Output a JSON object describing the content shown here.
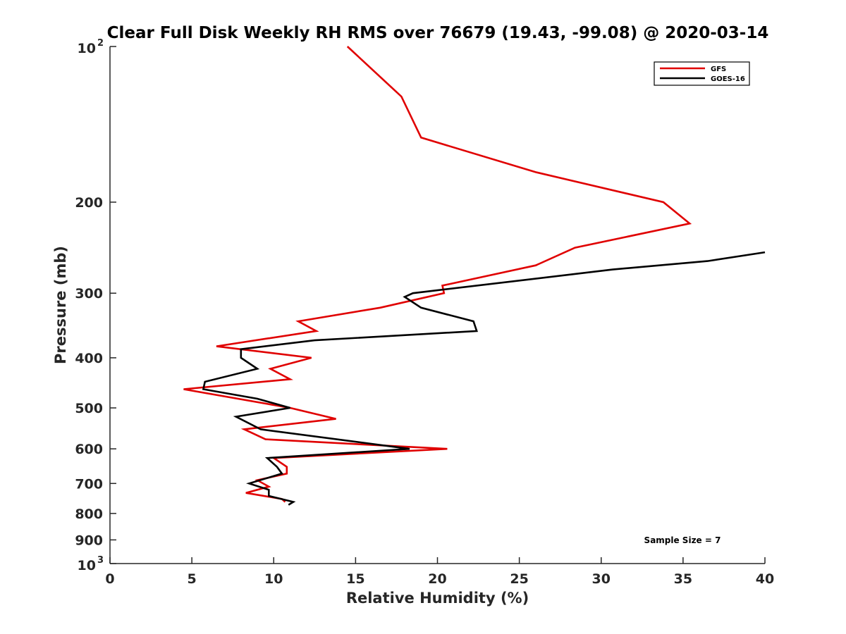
{
  "chart_data": {
    "type": "line",
    "title": "Clear Full Disk Weekly RH RMS over 76679 (19.43, -99.08) @ 2020-03-14",
    "xlabel": "Relative Humidity (%)",
    "ylabel": "Pressure (mb)",
    "xlim": [
      0,
      40
    ],
    "ylim": [
      100,
      1000
    ],
    "y_scale": "log",
    "y_reversed": true,
    "grid": false,
    "legend_position": "top-right",
    "x_ticks": [
      {
        "value": 0,
        "label": "0"
      },
      {
        "value": 5,
        "label": "5"
      },
      {
        "value": 10,
        "label": "10"
      },
      {
        "value": 15,
        "label": "15"
      },
      {
        "value": 20,
        "label": "20"
      },
      {
        "value": 25,
        "label": "25"
      },
      {
        "value": 30,
        "label": "30"
      },
      {
        "value": 35,
        "label": "35"
      },
      {
        "value": 40,
        "label": "40"
      }
    ],
    "y_ticks": [
      {
        "value": 100,
        "base": "10",
        "exp": "2"
      },
      {
        "value": 200,
        "label": "200"
      },
      {
        "value": 300,
        "label": "300"
      },
      {
        "value": 400,
        "label": "400"
      },
      {
        "value": 500,
        "label": "500"
      },
      {
        "value": 600,
        "label": "600"
      },
      {
        "value": 700,
        "label": "700"
      },
      {
        "value": 800,
        "label": "800"
      },
      {
        "value": 900,
        "label": "900"
      },
      {
        "value": 1000,
        "base": "10",
        "exp": "3"
      }
    ],
    "series": [
      {
        "name": "GFS",
        "color": "#e00000",
        "points": [
          [
            14.5,
            100
          ],
          [
            17.8,
            125
          ],
          [
            19.0,
            150
          ],
          [
            26.0,
            175
          ],
          [
            33.8,
            200
          ],
          [
            35.4,
            220
          ],
          [
            28.4,
            245
          ],
          [
            26.0,
            265
          ],
          [
            20.3,
            290
          ],
          [
            20.4,
            300
          ],
          [
            16.5,
            320
          ],
          [
            11.5,
            340
          ],
          [
            12.6,
            355
          ],
          [
            6.5,
            380
          ],
          [
            12.3,
            400
          ],
          [
            9.8,
            420
          ],
          [
            11.0,
            440
          ],
          [
            4.5,
            460
          ],
          [
            11.0,
            500
          ],
          [
            13.8,
            525
          ],
          [
            8.2,
            550
          ],
          [
            9.5,
            575
          ],
          [
            20.6,
            600
          ],
          [
            10.0,
            625
          ],
          [
            10.8,
            650
          ],
          [
            10.8,
            670
          ],
          [
            9.0,
            690
          ],
          [
            9.7,
            710
          ],
          [
            8.3,
            730
          ],
          [
            10.5,
            750
          ],
          [
            10.7,
            760
          ]
        ]
      },
      {
        "name": "GOES-16",
        "color": "#000000",
        "points": [
          [
            40.0,
            250
          ],
          [
            36.5,
            260
          ],
          [
            30.7,
            270
          ],
          [
            18.5,
            300
          ],
          [
            18.0,
            305
          ],
          [
            19.0,
            320
          ],
          [
            22.2,
            340
          ],
          [
            22.4,
            355
          ],
          [
            12.5,
            370
          ],
          [
            8.0,
            385
          ],
          [
            8.0,
            400
          ],
          [
            9.0,
            420
          ],
          [
            5.8,
            445
          ],
          [
            5.7,
            460
          ],
          [
            9.0,
            480
          ],
          [
            11.0,
            500
          ],
          [
            7.7,
            520
          ],
          [
            9.2,
            550
          ],
          [
            18.3,
            600
          ],
          [
            9.6,
            625
          ],
          [
            10.2,
            650
          ],
          [
            10.5,
            670
          ],
          [
            8.5,
            700
          ],
          [
            9.7,
            720
          ],
          [
            9.7,
            740
          ],
          [
            11.2,
            760
          ],
          [
            10.9,
            770
          ]
        ]
      }
    ],
    "annotations": [
      {
        "text": "Sample Size = 7"
      }
    ]
  }
}
